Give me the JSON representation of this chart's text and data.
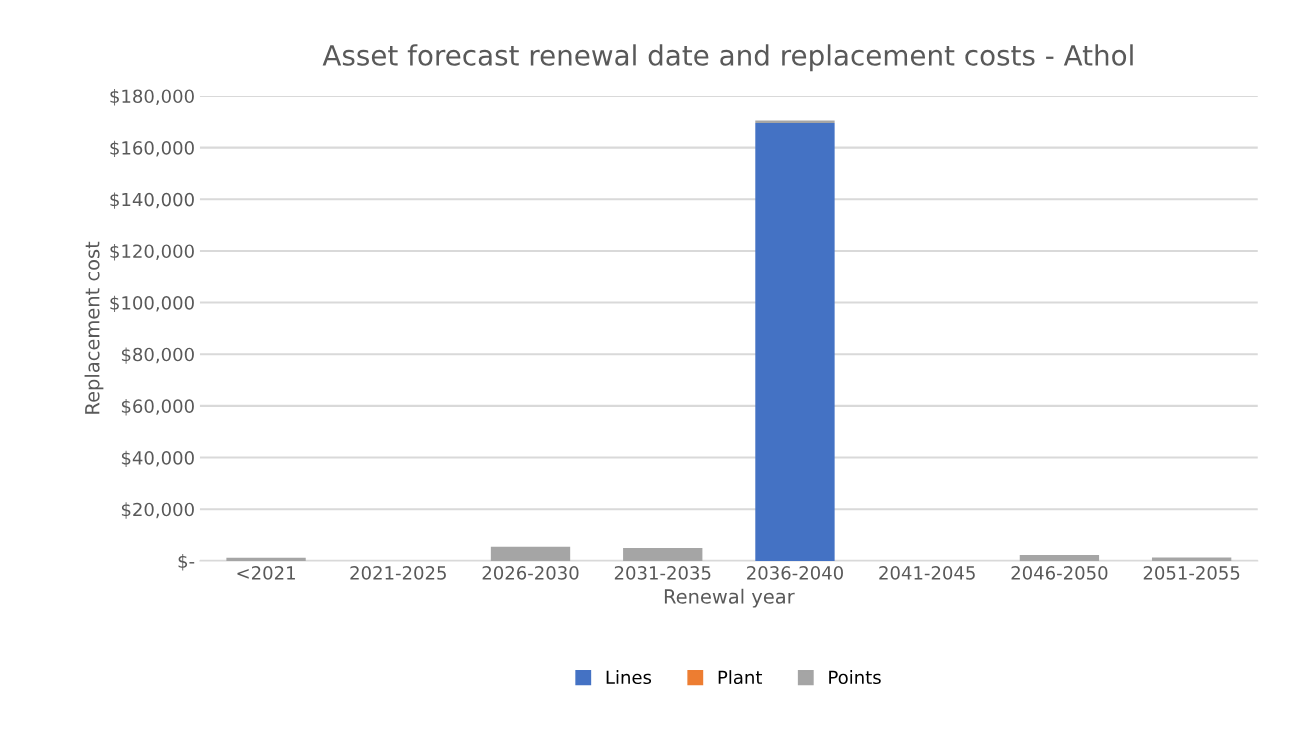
{
  "chart_data": {
    "type": "bar",
    "title": "Asset forecast renewal date and replacement costs - Athol",
    "xlabel": "Renewal year",
    "ylabel": "Replacement cost",
    "categories": [
      "<2021",
      "2021-2025",
      "2026-2030",
      "2031-2035",
      "2036-2040",
      "2041-2045",
      "2046-2050",
      "2051-2055"
    ],
    "stacked": true,
    "series": [
      {
        "name": "Lines",
        "color": "#4472c4",
        "values": [
          0,
          0,
          0,
          0,
          169500,
          0,
          0,
          0
        ]
      },
      {
        "name": "Plant",
        "color": "#ed7d31",
        "values": [
          0,
          0,
          0,
          0,
          0,
          0,
          0,
          0
        ]
      },
      {
        "name": "Points",
        "color": "#a5a5a5",
        "values": [
          1200,
          0,
          5500,
          5000,
          1000,
          0,
          2300,
          1300
        ]
      }
    ],
    "ylim": [
      0,
      180000
    ],
    "yticks": [
      {
        "value": 0,
        "label": "$-"
      },
      {
        "value": 20000,
        "label": "$20,000"
      },
      {
        "value": 40000,
        "label": "$40,000"
      },
      {
        "value": 60000,
        "label": "$60,000"
      },
      {
        "value": 80000,
        "label": "$80,000"
      },
      {
        "value": 100000,
        "label": "$100,000"
      },
      {
        "value": 120000,
        "label": "$120,000"
      },
      {
        "value": 140000,
        "label": "$140,000"
      },
      {
        "value": 160000,
        "label": "$160,000"
      },
      {
        "value": 180000,
        "label": "$180,000"
      }
    ],
    "grid": "y",
    "legend": "bottom"
  }
}
